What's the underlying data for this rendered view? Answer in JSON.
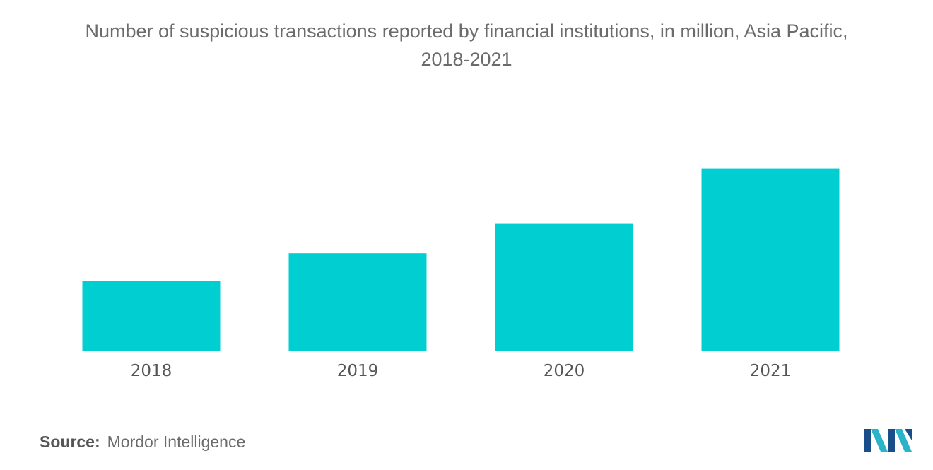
{
  "title_line1": "Number of suspicious transactions reported by financial institutions, in million, Asia Pacific,",
  "title_line2": "2018-2021",
  "source": {
    "label": "Source:",
    "text": "Mordor Intelligence"
  },
  "logo": {
    "icon": "mordor-intelligence-logo",
    "colors": [
      "#1a4e8a",
      "#2ab3c9"
    ]
  },
  "colors": {
    "bar": "#00ced1",
    "title_text": "#6b6b6b",
    "tick_text": "#555555"
  },
  "chart_data": {
    "type": "bar",
    "categories": [
      "2018",
      "2019",
      "2020",
      "2021"
    ],
    "values": [
      0.38,
      0.53,
      0.69,
      0.99
    ],
    "title": "Number of suspicious transactions reported by financial institutions, in million, Asia Pacific, 2018-2021",
    "xlabel": "",
    "ylabel": "",
    "ylim": [
      0,
      1.0
    ],
    "grid": false,
    "legend": "none",
    "y_axis_shown": false
  }
}
